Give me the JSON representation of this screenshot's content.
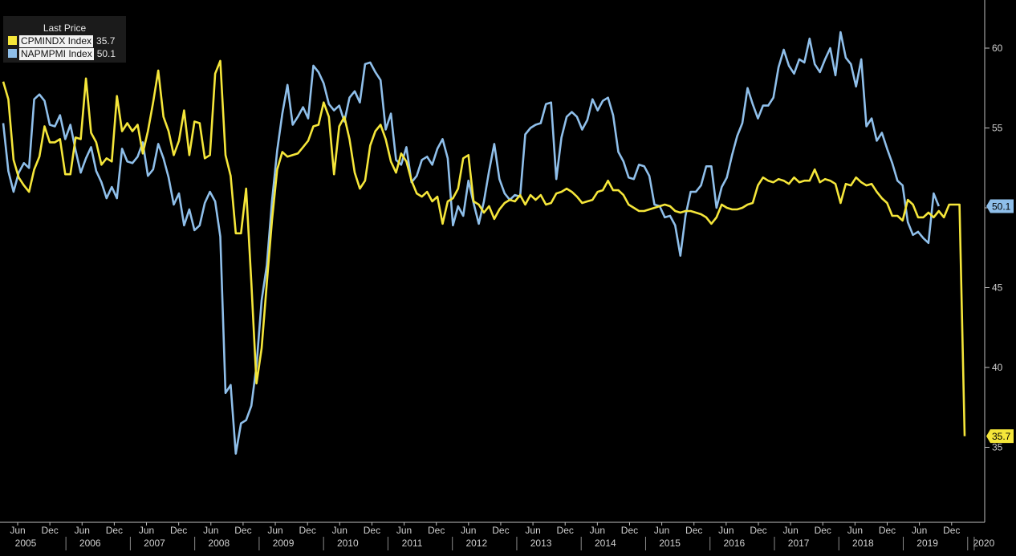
{
  "chart_data": {
    "type": "line",
    "legend": {
      "title": "Last Price",
      "placement": "top-left",
      "entries": [
        {
          "name": "CPMINDX Index",
          "value": "35.7",
          "color": "#f5e63a"
        },
        {
          "name": "NAPMPMI Index",
          "value": "50.1",
          "color": "#8fbfea"
        }
      ]
    },
    "ylim": [
      31.5,
      63
    ],
    "y_ticks": [
      "35",
      "40",
      "45",
      "50",
      "55",
      "60"
    ],
    "y_axis_side": "right",
    "x_ticks": [
      {
        "m": "Jun",
        "y": "2005"
      },
      {
        "m": "Dec",
        "y": ""
      },
      {
        "m": "Jun",
        "y": "2006"
      },
      {
        "m": "Dec",
        "y": ""
      },
      {
        "m": "Jun",
        "y": "2007"
      },
      {
        "m": "Dec",
        "y": ""
      },
      {
        "m": "Jun",
        "y": "2008"
      },
      {
        "m": "Dec",
        "y": ""
      },
      {
        "m": "Jun",
        "y": "2009"
      },
      {
        "m": "Dec",
        "y": ""
      },
      {
        "m": "Jun",
        "y": "2010"
      },
      {
        "m": "Dec",
        "y": ""
      },
      {
        "m": "Jun",
        "y": "2011"
      },
      {
        "m": "Dec",
        "y": ""
      },
      {
        "m": "Jun",
        "y": "2012"
      },
      {
        "m": "Dec",
        "y": ""
      },
      {
        "m": "Jun",
        "y": "2013"
      },
      {
        "m": "Dec",
        "y": ""
      },
      {
        "m": "Jun",
        "y": "2014"
      },
      {
        "m": "Dec",
        "y": ""
      },
      {
        "m": "Jun",
        "y": "2015"
      },
      {
        "m": "Dec",
        "y": ""
      },
      {
        "m": "Jun",
        "y": "2016"
      },
      {
        "m": "Dec",
        "y": ""
      },
      {
        "m": "Jun",
        "y": "2017"
      },
      {
        "m": "Dec",
        "y": ""
      },
      {
        "m": "Jun",
        "y": "2018"
      },
      {
        "m": "Dec",
        "y": ""
      },
      {
        "m": "Jun",
        "y": "2019"
      },
      {
        "m": "Dec",
        "y": ""
      },
      {
        "m": "",
        "y": "2020"
      }
    ],
    "x_start": "2005-01",
    "series": [
      {
        "name": "CPMINDX Index",
        "color": "#f5e63a",
        "last_label": "35.7",
        "values": [
          57.9,
          56.8,
          53.0,
          51.9,
          51.4,
          51.0,
          52.4,
          53.2,
          55.1,
          54.1,
          54.1,
          54.3,
          52.1,
          52.1,
          54.4,
          54.3,
          58.1,
          54.7,
          54.1,
          52.7,
          53.1,
          52.9,
          57.0,
          54.8,
          55.3,
          54.8,
          55.2,
          53.4,
          54.8,
          56.6,
          58.6,
          55.7,
          54.8,
          53.3,
          54.2,
          56.1,
          53.3,
          55.4,
          55.3,
          53.1,
          53.3,
          58.4,
          59.2,
          53.3,
          52.0,
          48.4,
          48.4,
          51.2,
          45.3,
          39.0,
          41.2,
          45.3,
          49.2,
          52.4,
          53.5,
          53.2,
          53.3,
          53.4,
          53.8,
          54.2,
          55.1,
          55.2,
          56.6,
          55.7,
          52.1,
          55.1,
          55.7,
          54.3,
          52.2,
          51.2,
          51.7,
          53.9,
          54.8,
          55.2,
          54.3,
          52.9,
          52.2,
          53.4,
          52.9,
          51.7,
          50.9,
          50.7,
          51.0,
          50.4,
          50.7,
          49.0,
          50.4,
          50.6,
          51.2,
          53.1,
          53.3,
          50.4,
          50.2,
          49.7,
          50.1,
          49.3,
          49.9,
          50.3,
          50.5,
          50.4,
          50.8,
          50.2,
          50.8,
          50.5,
          50.8,
          50.2,
          50.3,
          50.9,
          51.0,
          51.2,
          51.0,
          50.7,
          50.3,
          50.4,
          50.5,
          51.0,
          51.1,
          51.7,
          51.1,
          51.1,
          50.8,
          50.2,
          50.0,
          49.8,
          49.8,
          49.9,
          50.0,
          50.1,
          50.2,
          50.1,
          49.8,
          49.7,
          49.8,
          49.8,
          49.7,
          49.6,
          49.4,
          49.0,
          49.4,
          50.2,
          50.0,
          49.9,
          49.9,
          50.0,
          50.2,
          50.3,
          51.4,
          51.9,
          51.7,
          51.6,
          51.8,
          51.7,
          51.5,
          51.9,
          51.6,
          51.7,
          51.7,
          52.4,
          51.6,
          51.8,
          51.7,
          51.5,
          50.3,
          51.5,
          51.4,
          51.9,
          51.6,
          51.4,
          51.5,
          51.0,
          50.6,
          50.3,
          49.5,
          49.5,
          49.2,
          50.5,
          50.2,
          49.4,
          49.4,
          49.7,
          49.4,
          49.8,
          49.4,
          50.2,
          50.2,
          50.2,
          35.7
        ]
      },
      {
        "name": "NAPMPMI Index",
        "color": "#8fbfea",
        "last_label": "50.1",
        "values": [
          55.3,
          52.3,
          51.0,
          52.2,
          52.8,
          52.5,
          56.8,
          57.1,
          56.7,
          55.2,
          55.1,
          55.8,
          54.3,
          55.2,
          53.6,
          52.2,
          53.1,
          53.8,
          52.3,
          51.6,
          50.6,
          51.3,
          50.6,
          53.7,
          52.9,
          52.8,
          53.2,
          54.1,
          52.0,
          52.4,
          54.0,
          53.1,
          51.9,
          50.2,
          50.9,
          48.9,
          49.9,
          48.6,
          48.9,
          50.3,
          51.0,
          50.4,
          48.2,
          38.4,
          38.9,
          34.6,
          36.5,
          36.7,
          37.6,
          40.1,
          44.2,
          46.4,
          50.4,
          53.6,
          55.9,
          57.7,
          55.2,
          55.7,
          56.3,
          55.6,
          58.9,
          58.5,
          57.8,
          56.5,
          56.1,
          56.4,
          55.4,
          56.9,
          57.3,
          56.6,
          59.0,
          59.1,
          58.5,
          58.0,
          54.9,
          55.9,
          53.0,
          52.7,
          53.8,
          51.6,
          52.0,
          53.0,
          53.2,
          52.7,
          53.7,
          54.3,
          53.1,
          48.9,
          50.1,
          49.5,
          51.7,
          50.3,
          49.0,
          50.4,
          52.3,
          54.0,
          51.8,
          50.9,
          50.5,
          50.8,
          50.7,
          54.6,
          55.0,
          55.2,
          55.3,
          56.5,
          56.6,
          51.8,
          54.4,
          55.7,
          56.0,
          55.7,
          54.9,
          55.5,
          56.8,
          56.1,
          56.7,
          56.9,
          55.8,
          53.5,
          52.9,
          51.9,
          51.8,
          52.7,
          52.6,
          52.0,
          50.2,
          50.1,
          49.4,
          49.5,
          48.9,
          47.0,
          49.5,
          51.0,
          51.0,
          51.4,
          52.6,
          52.6,
          50.0,
          51.3,
          51.9,
          53.3,
          54.5,
          55.3,
          57.5,
          56.5,
          55.6,
          56.4,
          56.4,
          56.9,
          58.8,
          59.9,
          58.9,
          58.4,
          59.3,
          59.1,
          60.6,
          59.0,
          58.5,
          59.3,
          60.0,
          58.3,
          61.0,
          59.4,
          59.0,
          57.6,
          59.3,
          55.1,
          55.6,
          54.2,
          54.7,
          53.7,
          52.8,
          51.7,
          51.4,
          49.1,
          48.3,
          48.5,
          48.1,
          47.8,
          50.9,
          50.1
        ]
      }
    ]
  }
}
